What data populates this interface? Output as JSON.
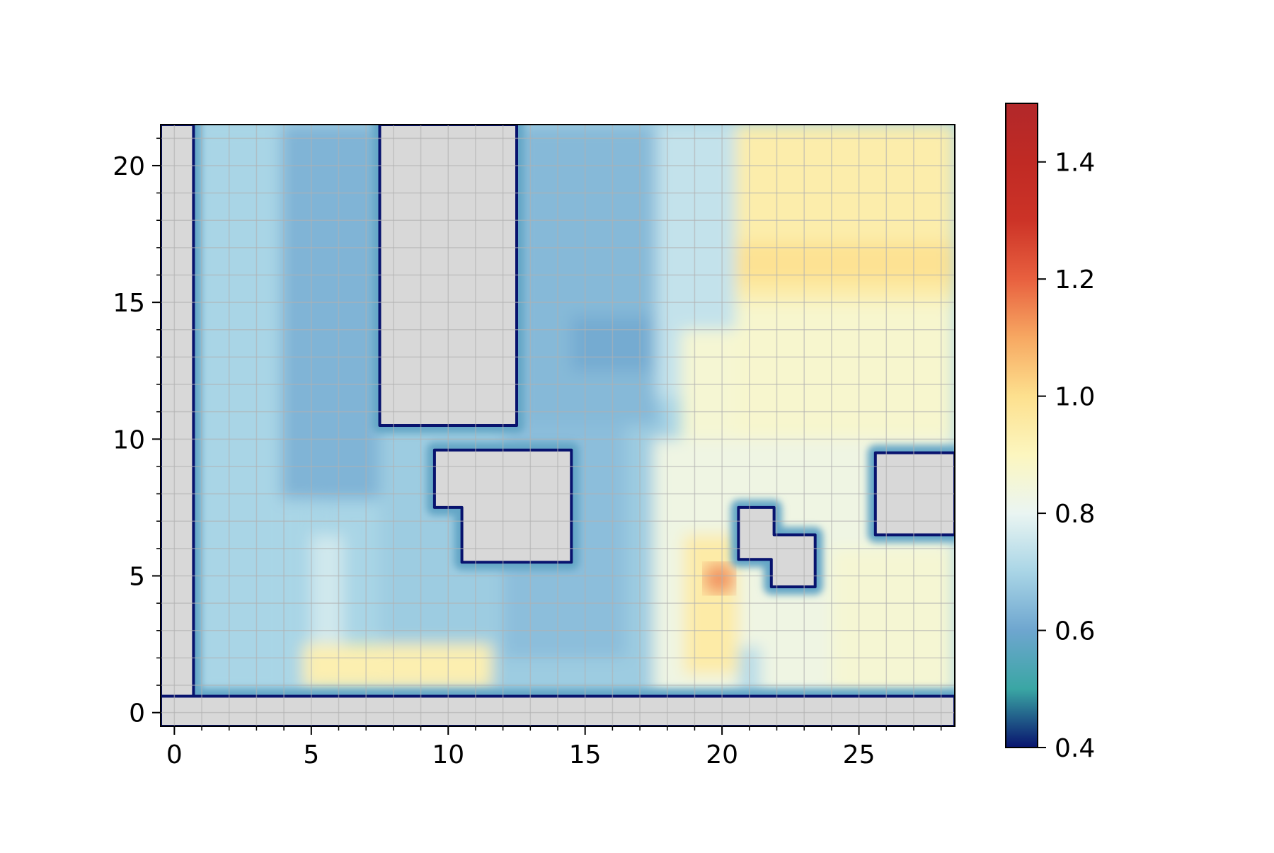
{
  "chart_data": {
    "type": "heatmap",
    "title": "",
    "xlabel": "",
    "ylabel": "",
    "xlim": [
      -0.5,
      28.5
    ],
    "ylim": [
      -0.5,
      21.5
    ],
    "x_ticks": [
      0,
      5,
      10,
      15,
      20,
      25
    ],
    "x_tick_labels": [
      "0",
      "5",
      "10",
      "15",
      "20",
      "25"
    ],
    "y_ticks": [
      0,
      5,
      10,
      15,
      20
    ],
    "y_tick_labels": [
      "0",
      "5",
      "10",
      "15",
      "20"
    ],
    "grid": true,
    "minor_ticks": true,
    "colormap": "RdYlBu_r",
    "obstacle_color": "#d8d8d8",
    "colorbar": {
      "range": [
        0.4,
        1.5
      ],
      "ticks": [
        0.4,
        0.6,
        0.8,
        1.0,
        1.2,
        1.4
      ],
      "tick_labels": [
        "0.4",
        "0.6",
        "0.8",
        "1.0",
        "1.2",
        "1.4"
      ],
      "stops": [
        {
          "value": 0.4,
          "color": "#08136e"
        },
        {
          "value": 0.5,
          "color": "#3aa6a4"
        },
        {
          "value": 0.6,
          "color": "#6ea6cf"
        },
        {
          "value": 0.7,
          "color": "#a9d5e6"
        },
        {
          "value": 0.8,
          "color": "#eaf5f2"
        },
        {
          "value": 0.9,
          "color": "#fcf6bf"
        },
        {
          "value": 1.0,
          "color": "#fde08e"
        },
        {
          "value": 1.1,
          "color": "#f7a862"
        },
        {
          "value": 1.2,
          "color": "#e8603f"
        },
        {
          "value": 1.3,
          "color": "#cc3327"
        },
        {
          "value": 1.4,
          "color": "#c02a24"
        },
        {
          "value": 1.5,
          "color": "#b2282a"
        }
      ]
    },
    "regions": [
      {
        "x0": 0.7,
        "x1": 3.9,
        "y0": 0.6,
        "y1": 21.5,
        "value": 0.7
      },
      {
        "x0": 3.9,
        "x1": 7.5,
        "y0": 7.8,
        "y1": 21.5,
        "value": 0.63
      },
      {
        "x0": 3.9,
        "x1": 5.2,
        "y0": 0.6,
        "y1": 7.8,
        "value": 0.7
      },
      {
        "x0": 5.0,
        "x1": 6.2,
        "y0": 2.4,
        "y1": 6.5,
        "value": 0.76
      },
      {
        "x0": 12.5,
        "x1": 17.7,
        "y0": 10.0,
        "y1": 21.5,
        "value": 0.64
      },
      {
        "x0": 14.5,
        "x1": 17.5,
        "y0": 12.5,
        "y1": 14.5,
        "value": 0.61
      },
      {
        "x0": 7.5,
        "x1": 18.0,
        "y0": 0.6,
        "y1": 10.5,
        "value": 0.68
      },
      {
        "x0": 12.0,
        "x1": 16.5,
        "y0": 2.0,
        "y1": 10.5,
        "value": 0.65
      },
      {
        "x0": 17.6,
        "x1": 20.5,
        "y0": 11.5,
        "y1": 21.5,
        "value": 0.74
      },
      {
        "x0": 20.5,
        "x1": 28.5,
        "y0": 15.0,
        "y1": 21.5,
        "value": 0.94
      },
      {
        "x0": 20.5,
        "x1": 28.5,
        "y0": 10.0,
        "y1": 15.0,
        "value": 0.87
      },
      {
        "x0": 18.5,
        "x1": 20.5,
        "y0": 10.0,
        "y1": 14.0,
        "value": 0.86
      },
      {
        "x0": 17.5,
        "x1": 28.5,
        "y0": 0.6,
        "y1": 10.0,
        "value": 0.83
      },
      {
        "x0": 24.0,
        "x1": 28.5,
        "y0": 0.6,
        "y1": 6.0,
        "value": 0.86
      },
      {
        "x0": 4.7,
        "x1": 11.6,
        "y0": 0.9,
        "y1": 2.5,
        "value": 0.93
      },
      {
        "x0": 18.6,
        "x1": 20.6,
        "y0": 1.4,
        "y1": 6.5,
        "value": 0.95
      },
      {
        "x0": 20.6,
        "x1": 21.4,
        "y0": 0.6,
        "y1": 2.4,
        "value": 0.72
      },
      {
        "x0": 20.5,
        "x1": 28.5,
        "y0": 15.7,
        "y1": 17.2,
        "value": 0.99
      }
    ],
    "hotspots": [
      {
        "x": 19.9,
        "y": 4.9,
        "value": 1.17
      }
    ],
    "obstacles": [
      {
        "shape": "rect",
        "x0": 7.5,
        "x1": 12.5,
        "y0": 10.5,
        "y1": 21.5
      },
      {
        "shape": "polygon",
        "points": [
          [
            9.5,
            9.6
          ],
          [
            14.5,
            9.6
          ],
          [
            14.5,
            5.5
          ],
          [
            10.5,
            5.5
          ],
          [
            10.5,
            7.5
          ],
          [
            9.5,
            7.5
          ]
        ]
      },
      {
        "shape": "polygon",
        "points": [
          [
            20.6,
            7.5
          ],
          [
            21.9,
            7.5
          ],
          [
            21.9,
            6.5
          ],
          [
            23.4,
            6.5
          ],
          [
            23.4,
            4.6
          ],
          [
            21.8,
            4.6
          ],
          [
            21.8,
            5.6
          ],
          [
            20.6,
            5.6
          ]
        ]
      },
      {
        "shape": "rect",
        "x0": 25.6,
        "x1": 28.5,
        "y0": 6.5,
        "y1": 9.5
      },
      {
        "shape": "rect",
        "x0": -0.5,
        "x1": 0.7,
        "y0": -0.5,
        "y1": 21.5
      },
      {
        "shape": "rect",
        "x0": -0.5,
        "x1": 28.5,
        "y0": -0.5,
        "y1": 0.6
      }
    ]
  }
}
